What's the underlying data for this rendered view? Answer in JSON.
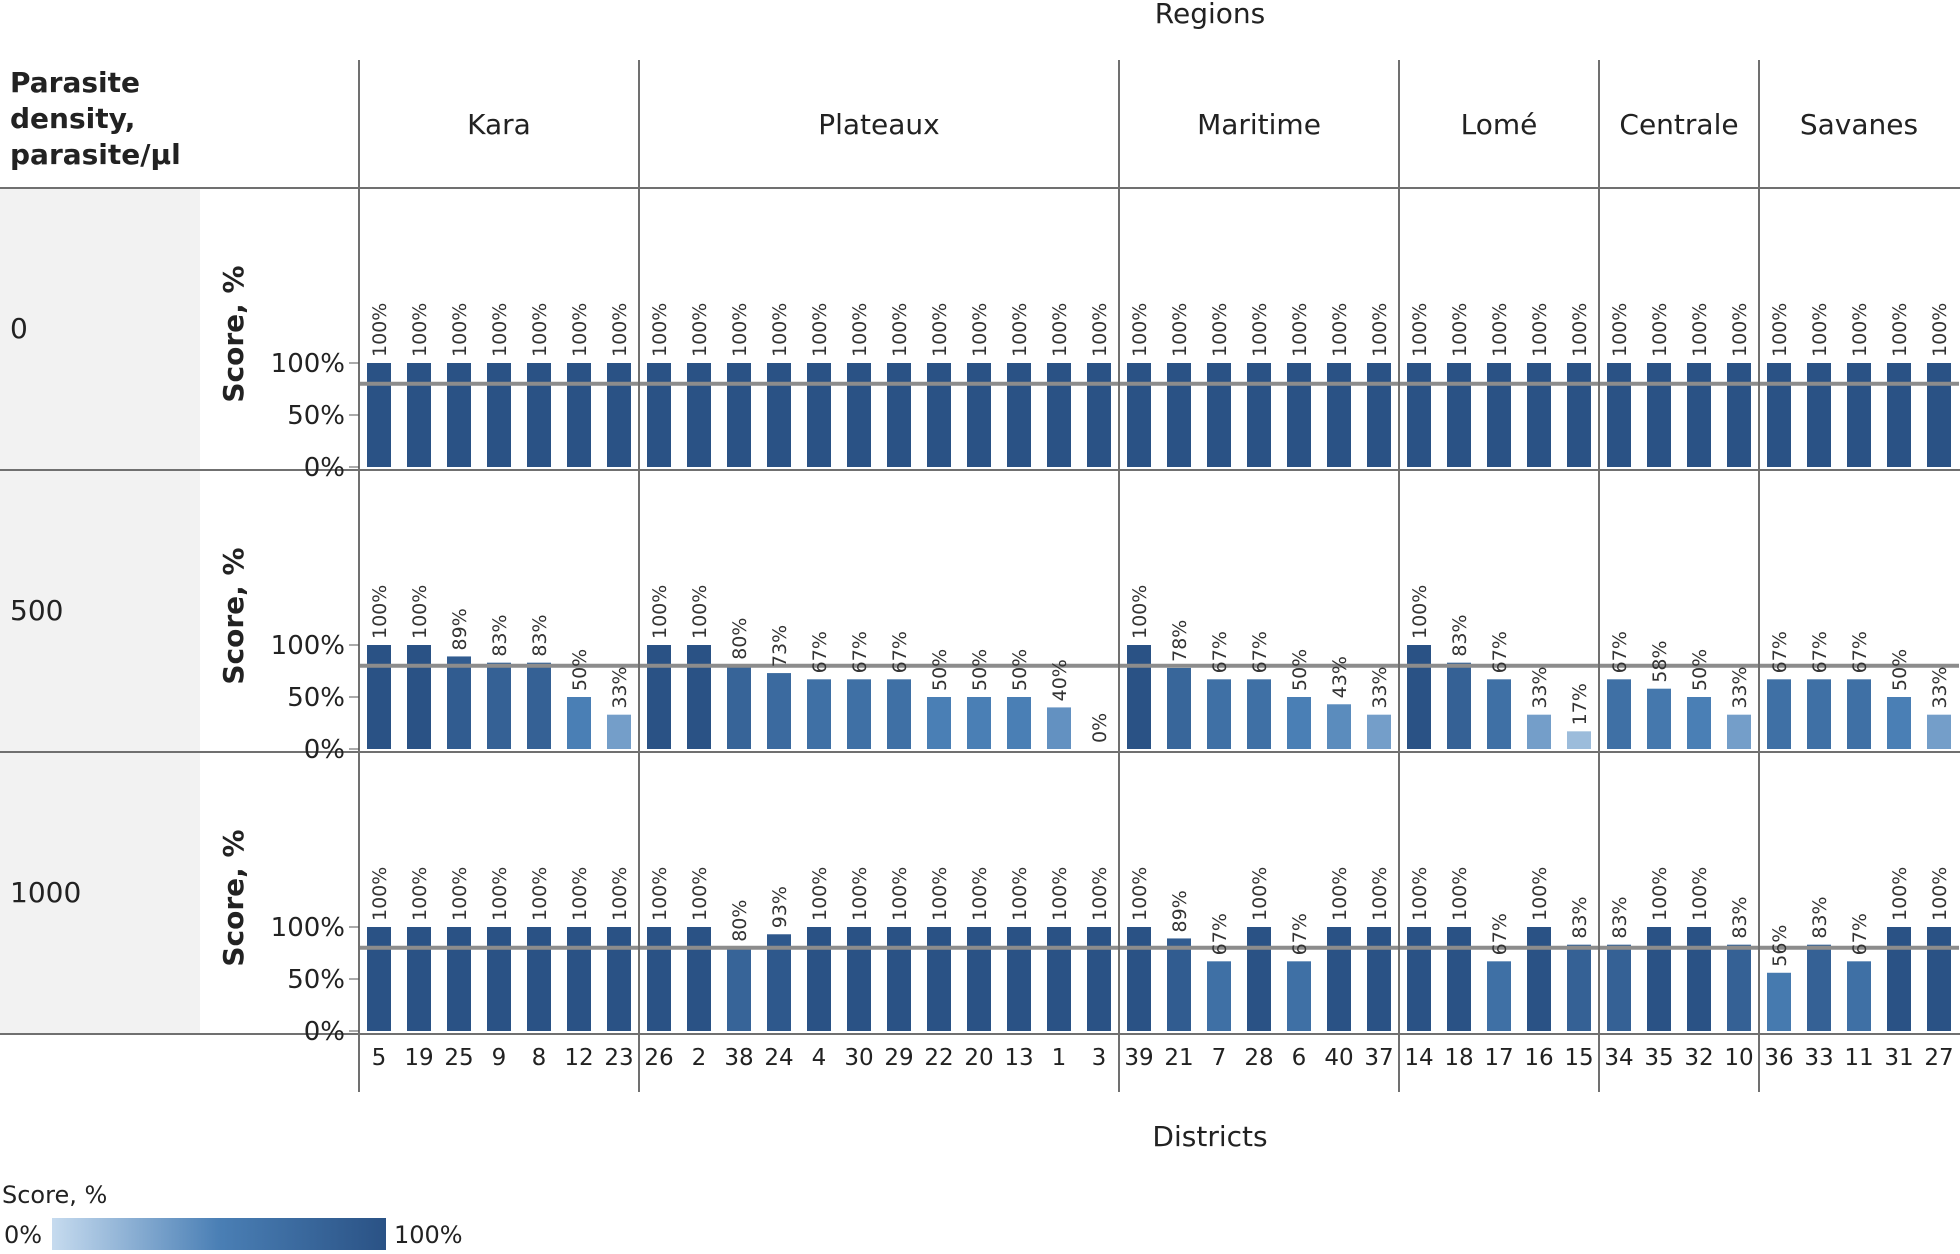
{
  "chart_data": {
    "type": "bar",
    "title": "",
    "top_label": "Regions",
    "bottom_label": "Districts",
    "row_header": [
      "Parasite",
      "density,",
      "parasite/µl"
    ],
    "ylabel": "Score, %",
    "ylim": [
      0,
      130
    ],
    "y_ticks": [
      {
        "value": 0,
        "label": "0%"
      },
      {
        "value": 50,
        "label": "50%"
      },
      {
        "value": 100,
        "label": "100%"
      }
    ],
    "reference_line": 80,
    "grid": false,
    "regions": [
      {
        "name": "Kara",
        "districts": [
          "5",
          "19",
          "25",
          "9",
          "8",
          "12",
          "23"
        ]
      },
      {
        "name": "Plateaux",
        "districts": [
          "26",
          "2",
          "38",
          "24",
          "4",
          "30",
          "29",
          "22",
          "20",
          "13",
          "1",
          "3"
        ]
      },
      {
        "name": "Maritime",
        "districts": [
          "39",
          "21",
          "7",
          "28",
          "6",
          "40",
          "37"
        ]
      },
      {
        "name": "Lomé",
        "districts": [
          "14",
          "18",
          "17",
          "16",
          "15"
        ]
      },
      {
        "name": "Centrale",
        "districts": [
          "34",
          "35",
          "32",
          "10"
        ]
      },
      {
        "name": "Savanes",
        "districts": [
          "36",
          "33",
          "11",
          "31",
          "27"
        ]
      }
    ],
    "rows": [
      {
        "density": "0",
        "values": [
          100,
          100,
          100,
          100,
          100,
          100,
          100,
          100,
          100,
          100,
          100,
          100,
          100,
          100,
          100,
          100,
          100,
          100,
          100,
          100,
          100,
          100,
          100,
          100,
          100,
          100,
          100,
          100,
          100,
          100,
          100,
          100,
          100,
          100,
          100,
          100,
          100,
          100,
          100,
          100
        ]
      },
      {
        "density": "500",
        "values": [
          100,
          100,
          89,
          83,
          83,
          50,
          33,
          100,
          100,
          80,
          73,
          67,
          67,
          67,
          50,
          50,
          50,
          40,
          0,
          100,
          78,
          67,
          67,
          50,
          43,
          33,
          100,
          83,
          67,
          33,
          17,
          67,
          58,
          50,
          33,
          67,
          67,
          67,
          50,
          33
        ]
      },
      {
        "density": "1000",
        "values": [
          100,
          100,
          100,
          100,
          100,
          100,
          100,
          100,
          100,
          80,
          93,
          100,
          100,
          100,
          100,
          100,
          100,
          100,
          100,
          100,
          89,
          67,
          100,
          67,
          100,
          100,
          100,
          100,
          67,
          100,
          83,
          83,
          100,
          100,
          83,
          56,
          83,
          67,
          100,
          100
        ]
      }
    ],
    "legend": {
      "title": "Score, %",
      "min_label": "0%",
      "max_label": "100%",
      "placement": "bottom-left"
    },
    "colors": {
      "low": "#c6dbef",
      "mid": "#4a7fb5",
      "high": "#2a5285",
      "reference": "#8c8c8c",
      "row_header_bg": "#f2f2f2"
    }
  }
}
